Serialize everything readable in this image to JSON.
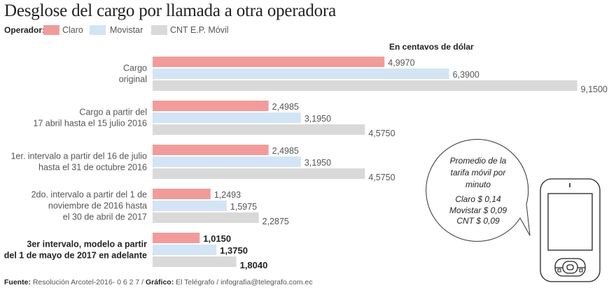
{
  "header": {
    "title": "Desglose del cargo por llamada a otra operadora",
    "legend_label": "Operador:",
    "unit_label": "En centavos de dólar"
  },
  "chart_data": {
    "type": "bar",
    "orientation": "horizontal",
    "title": "Desglose del cargo por llamada a otra operadora",
    "xlabel": "En centavos de dólar",
    "ylabel": "",
    "xlim": [
      0,
      9.15
    ],
    "grid": false,
    "legend_title": "Operador:",
    "legend_position": "top-left",
    "categories": [
      {
        "lines": [
          "Cargo",
          "original"
        ],
        "bold": false
      },
      {
        "lines": [
          "Cargo a partir del",
          "17 abril hasta el 15 julio 2016"
        ],
        "bold": false
      },
      {
        "lines": [
          "1er. intervalo a partir del 16 de julio",
          "hasta el 31 de octubre 2016"
        ],
        "bold": false
      },
      {
        "lines": [
          "2do. intervalo a partir del 1 de",
          "noviembre de 2016 hasta",
          "el 30 de abril de 2017"
        ],
        "bold": false
      },
      {
        "lines": [
          "3er intervalo, modelo a partir",
          "del 1 de mayo de 2017 en adelante"
        ],
        "bold": true
      }
    ],
    "series": [
      {
        "name": "Claro",
        "color": "#f19c9a",
        "values": [
          4.997,
          2.4985,
          2.4985,
          1.2493,
          1.015
        ],
        "labels": [
          "4,9970",
          "2,4985",
          "2,4985",
          "1,2493",
          "1,0150"
        ]
      },
      {
        "name": "Movistar",
        "color": "#d3e4f5",
        "values": [
          6.39,
          3.195,
          3.195,
          1.5975,
          1.375
        ],
        "labels": [
          "6,3900",
          "3,1950",
          "3,1950",
          "1,5975",
          "1,3750"
        ]
      },
      {
        "name": "CNT E.P. Móvil",
        "color": "#d9d9da",
        "values": [
          9.15,
          4.575,
          4.575,
          2.2875,
          1.804
        ],
        "labels": [
          "9,1500",
          "4,5750",
          "4,5750",
          "2,2875",
          "1,8040"
        ]
      }
    ]
  },
  "callout": {
    "lines": [
      "Promedio de la",
      "tarifa móvil por",
      "minuto",
      "Claro $ 0,14",
      "Movistar $ 0,09",
      "CNT $ 0,09"
    ],
    "icon": "mobile-phone-icon"
  },
  "footer": {
    "source_label": "Fuente:",
    "source_text": " Resolución Arcotel-2016- 0 6 2 7 / ",
    "graphic_label": "Gráfico:",
    "graphic_text": " El Telégrafo / infografia@telegrafo.com.ec"
  }
}
